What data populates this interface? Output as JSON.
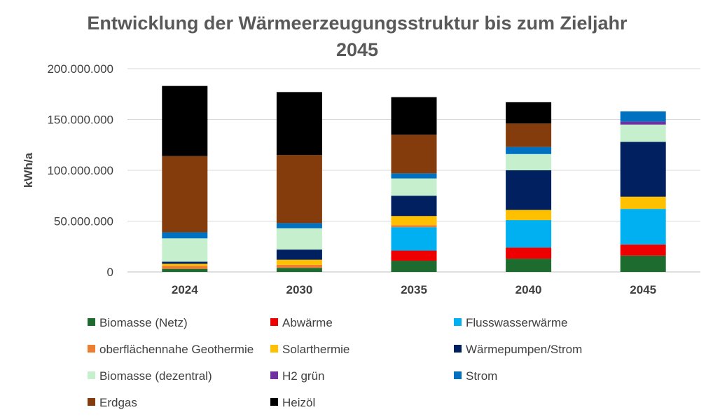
{
  "chart_data": {
    "type": "bar",
    "stacked": true,
    "title_lines": [
      "Entwicklung der Wärmeerzeugungsstruktur bis zum Zieljahr",
      "2045"
    ],
    "ylabel": "kWh/a",
    "xlabel": "",
    "ylim": [
      0,
      200000000
    ],
    "yticks": [
      0,
      50000000,
      100000000,
      150000000,
      200000000
    ],
    "ytick_labels": [
      "0",
      "50.000.000",
      "100.000.000",
      "150.000.000",
      "200.000.000"
    ],
    "grid": true,
    "categories": [
      "2024",
      "2030",
      "2035",
      "2040",
      "2045"
    ],
    "series": [
      {
        "name": "Biomasse (Netz)",
        "color": "#1e6b30",
        "values": [
          3000000,
          4000000,
          11000000,
          13000000,
          16000000
        ]
      },
      {
        "name": "Abwärme",
        "color": "#ee0000",
        "values": [
          0,
          0,
          10000000,
          11000000,
          11000000
        ]
      },
      {
        "name": "Flusswasserwärme",
        "color": "#00b0f0",
        "values": [
          0,
          0,
          23000000,
          27000000,
          35000000
        ]
      },
      {
        "name": "oberflächennahe Geothermie",
        "color": "#ed7d31",
        "values": [
          3000000,
          3000000,
          2000000,
          0,
          0
        ]
      },
      {
        "name": "Solarthermie",
        "color": "#ffc000",
        "values": [
          2000000,
          5000000,
          9000000,
          10000000,
          12000000
        ]
      },
      {
        "name": "Wärmepumpen/Strom",
        "color": "#002060",
        "values": [
          2000000,
          10000000,
          20000000,
          39000000,
          54000000
        ]
      },
      {
        "name": "Biomasse (dezentral)",
        "color": "#c6efce",
        "values": [
          23000000,
          21000000,
          17000000,
          16000000,
          17000000
        ]
      },
      {
        "name": "H2 grün",
        "color": "#7030a0",
        "values": [
          0,
          0,
          0,
          0,
          3000000
        ]
      },
      {
        "name": "Strom",
        "color": "#0070c0",
        "values": [
          6000000,
          5000000,
          5000000,
          7000000,
          10000000
        ]
      },
      {
        "name": "Erdgas",
        "color": "#843c0c",
        "values": [
          75000000,
          67000000,
          38000000,
          23000000,
          0
        ]
      },
      {
        "name": "Heizöl",
        "color": "#000000",
        "values": [
          69000000,
          62000000,
          37000000,
          21000000,
          0
        ]
      }
    ],
    "legend_position": "bottom",
    "legend_columns": 3
  }
}
